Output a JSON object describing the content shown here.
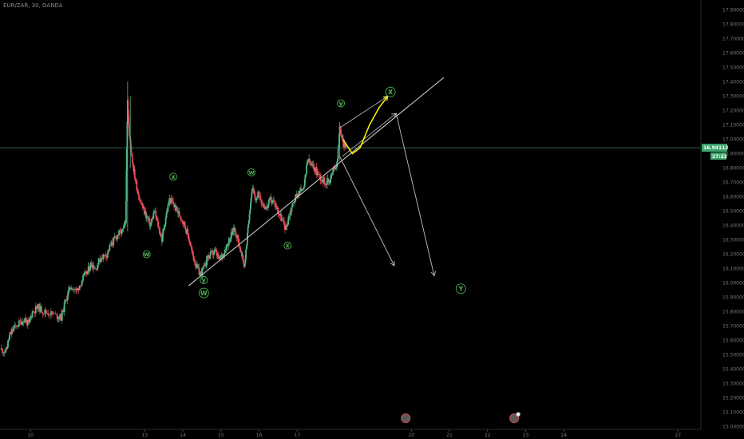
{
  "symbol": "EUR/ZAR, 30, OANDA",
  "colors": {
    "background": "#000000",
    "up": "#53b987",
    "down": "#eb4d5c",
    "trendline": "#d8d8d8",
    "arrow": "#bfbfbf",
    "projection": "#ffee00",
    "wave_label": "#4caf50",
    "price_line": "#3c7a5c",
    "price_tag": "#3ea66b",
    "axis_text": "#777777"
  },
  "chart_data": {
    "type": "candlestick",
    "ylim": [
      14.98,
      17.97
    ],
    "xlim": [
      9.2,
      27.6
    ],
    "y_ticks": [
      "17.90000",
      "17.80000",
      "17.70000",
      "17.60000",
      "17.50000",
      "17.40000",
      "17.30000",
      "17.20000",
      "17.10000",
      "17.00000",
      "16.90000",
      "16.80000",
      "16.70000",
      "16.60000",
      "16.50000",
      "16.40000",
      "16.30000",
      "16.20000",
      "16.10000",
      "16.00000",
      "15.90000",
      "15.80000",
      "15.70000",
      "15.60000",
      "15.50000",
      "15.40000",
      "15.30000",
      "15.20000",
      "15.10000",
      "15.00000"
    ],
    "y_tick_values": [
      17.9,
      17.8,
      17.7,
      17.6,
      17.5,
      17.4,
      17.3,
      17.2,
      17.1,
      17.0,
      16.9,
      16.8,
      16.7,
      16.6,
      16.5,
      16.4,
      16.3,
      16.2,
      16.1,
      16.0,
      15.9,
      15.8,
      15.7,
      15.6,
      15.5,
      15.4,
      15.3,
      15.2,
      15.1,
      15.0
    ],
    "x_ticks": [
      "10",
      "13",
      "14",
      "15",
      "16",
      "17",
      "20",
      "21",
      "22",
      "23",
      "24",
      "27"
    ],
    "x_tick_values": [
      10,
      13,
      14,
      15,
      16,
      17,
      20,
      21,
      22,
      23,
      24,
      27
    ],
    "last_price": 16.94112,
    "last_price_label": "16.94112",
    "countdown_label": "27:22",
    "price_path": [
      [
        9.2,
        15.54
      ],
      [
        9.35,
        15.52
      ],
      [
        9.45,
        15.63
      ],
      [
        9.55,
        15.68
      ],
      [
        9.7,
        15.72
      ],
      [
        9.85,
        15.75
      ],
      [
        9.95,
        15.71
      ],
      [
        10.05,
        15.8
      ],
      [
        10.2,
        15.83
      ],
      [
        10.35,
        15.8
      ],
      [
        10.5,
        15.79
      ],
      [
        10.7,
        15.77
      ],
      [
        10.8,
        15.76
      ],
      [
        10.95,
        15.9
      ],
      [
        11.05,
        15.98
      ],
      [
        11.2,
        15.94
      ],
      [
        11.35,
        16.02
      ],
      [
        11.5,
        16.08
      ],
      [
        11.6,
        16.14
      ],
      [
        11.7,
        16.1
      ],
      [
        11.85,
        16.18
      ],
      [
        12.0,
        16.2
      ],
      [
        12.1,
        16.26
      ],
      [
        12.2,
        16.3
      ],
      [
        12.3,
        16.34
      ],
      [
        12.42,
        16.36
      ],
      [
        12.5,
        16.42
      ],
      [
        12.55,
        17.28
      ],
      [
        12.6,
        17.02
      ],
      [
        12.68,
        16.85
      ],
      [
        12.75,
        16.72
      ],
      [
        12.85,
        16.6
      ],
      [
        12.95,
        16.52
      ],
      [
        13.05,
        16.46
      ],
      [
        13.15,
        16.4
      ],
      [
        13.25,
        16.5
      ],
      [
        13.35,
        16.4
      ],
      [
        13.45,
        16.3
      ],
      [
        13.55,
        16.46
      ],
      [
        13.65,
        16.58
      ],
      [
        13.75,
        16.55
      ],
      [
        13.85,
        16.5
      ],
      [
        13.95,
        16.46
      ],
      [
        14.05,
        16.4
      ],
      [
        14.15,
        16.32
      ],
      [
        14.25,
        16.2
      ],
      [
        14.35,
        16.12
      ],
      [
        14.45,
        16.06
      ],
      [
        14.55,
        16.1
      ],
      [
        14.65,
        16.18
      ],
      [
        14.75,
        16.2
      ],
      [
        14.85,
        16.22
      ],
      [
        14.95,
        16.16
      ],
      [
        15.05,
        16.2
      ],
      [
        15.15,
        16.26
      ],
      [
        15.25,
        16.32
      ],
      [
        15.35,
        16.38
      ],
      [
        15.45,
        16.3
      ],
      [
        15.55,
        16.18
      ],
      [
        15.62,
        16.12
      ],
      [
        15.68,
        16.28
      ],
      [
        15.75,
        16.5
      ],
      [
        15.82,
        16.66
      ],
      [
        15.9,
        16.58
      ],
      [
        16.0,
        16.62
      ],
      [
        16.1,
        16.55
      ],
      [
        16.2,
        16.52
      ],
      [
        16.3,
        16.58
      ],
      [
        16.4,
        16.56
      ],
      [
        16.5,
        16.5
      ],
      [
        16.6,
        16.44
      ],
      [
        16.7,
        16.38
      ],
      [
        16.8,
        16.48
      ],
      [
        16.9,
        16.56
      ],
      [
        17.0,
        16.62
      ],
      [
        17.1,
        16.64
      ],
      [
        17.2,
        16.7
      ],
      [
        17.28,
        16.86
      ],
      [
        17.36,
        16.82
      ],
      [
        17.45,
        16.8
      ],
      [
        17.55,
        16.76
      ],
      [
        17.65,
        16.72
      ],
      [
        17.75,
        16.7
      ],
      [
        17.85,
        16.72
      ],
      [
        17.95,
        16.78
      ],
      [
        18.05,
        16.84
      ],
      [
        18.12,
        17.08
      ],
      [
        18.2,
        16.98
      ],
      [
        18.28,
        16.94
      ]
    ],
    "wicks": [
      {
        "x": 12.55,
        "high": 17.4,
        "low": 16.36
      },
      {
        "x": 12.62,
        "high": 17.3,
        "low": 16.8
      },
      {
        "x": 18.12,
        "high": 17.12,
        "low": 16.85
      }
    ],
    "wave_labels": [
      {
        "text": "w",
        "x": 13.05,
        "y": 16.2
      },
      {
        "text": "x",
        "x": 13.75,
        "y": 16.74
      },
      {
        "text": "y",
        "x": 14.55,
        "y": 16.02
      },
      {
        "text": "W",
        "x": 14.55,
        "y": 15.93
      },
      {
        "text": "w",
        "x": 15.8,
        "y": 16.77
      },
      {
        "text": "x",
        "x": 16.75,
        "y": 16.26
      },
      {
        "text": "y",
        "x": 18.15,
        "y": 17.25
      },
      {
        "text": "X",
        "x": 19.45,
        "y": 17.33
      },
      {
        "text": "Y",
        "x": 21.3,
        "y": 15.96
      }
    ],
    "trendline": {
      "from": [
        14.15,
        15.98
      ],
      "to": [
        20.85,
        17.43
      ]
    },
    "channel_lines": [
      {
        "from": [
          18.12,
          17.08
        ],
        "to": [
          19.38,
          17.3
        ]
      },
      {
        "from": [
          18.18,
          16.88
        ],
        "to": [
          19.6,
          17.18
        ]
      }
    ],
    "arrows": [
      {
        "from": [
          18.12,
          16.88
        ],
        "to": [
          19.55,
          16.12
        ]
      },
      {
        "from": [
          19.6,
          17.18
        ],
        "to": [
          20.6,
          16.05
        ]
      }
    ],
    "projection": [
      [
        18.2,
        17.0
      ],
      [
        18.45,
        16.9
      ],
      [
        18.65,
        16.94
      ],
      [
        18.9,
        17.1
      ],
      [
        19.15,
        17.22
      ],
      [
        19.38,
        17.3
      ]
    ],
    "event_markers": [
      19.85,
      22.7
    ]
  }
}
